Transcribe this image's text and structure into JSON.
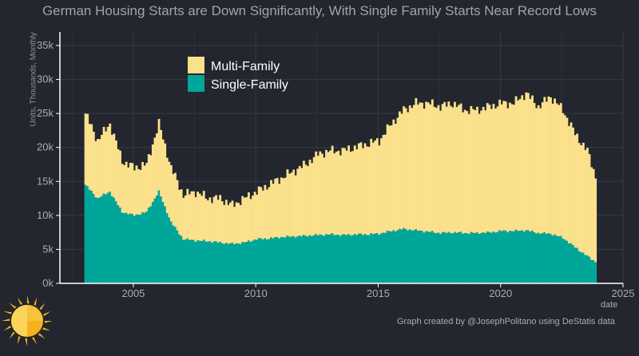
{
  "chart_data": {
    "type": "area",
    "title": "German Housing Starts are Down Significantly, With Single Family Starts Near Record Lows",
    "xlabel": "date",
    "ylabel": "Units, Thousands, Monthly",
    "caption": "Graph created by @JosephPolitano using DeStatis data",
    "stacked": true,
    "x_range": [
      2002.0,
      2025.0
    ],
    "ylim": [
      0,
      37000
    ],
    "y_ticks": [
      0,
      5000,
      10000,
      15000,
      20000,
      25000,
      30000,
      35000
    ],
    "y_tick_labels": [
      "0k",
      "5k",
      "10k",
      "15k",
      "20k",
      "25k",
      "30k",
      "35k"
    ],
    "x_ticks": [
      2005,
      2010,
      2015,
      2020,
      2025
    ],
    "x_tick_labels": [
      "2005",
      "2010",
      "2015",
      "2020",
      "2025"
    ],
    "grid": true,
    "legend_position": "top-left",
    "series": [
      {
        "name": "Multi-Family",
        "color": "#fbe18c",
        "description": "total height of stacked bars (Single-Family + Multi-Family)",
        "x": [
          2003.0,
          2003.5,
          2004.0,
          2004.5,
          2005.0,
          2005.5,
          2006.0,
          2006.5,
          2007.0,
          2007.5,
          2008.0,
          2008.5,
          2009.0,
          2009.5,
          2010.0,
          2010.5,
          2011.0,
          2011.5,
          2012.0,
          2012.5,
          2013.0,
          2013.5,
          2014.0,
          2014.5,
          2015.0,
          2015.5,
          2016.0,
          2016.5,
          2017.0,
          2017.5,
          2018.0,
          2018.5,
          2019.0,
          2019.5,
          2020.0,
          2020.5,
          2021.0,
          2021.5,
          2022.0,
          2022.5,
          2023.0,
          2023.5,
          2023.9
        ],
        "values": [
          25000,
          21000,
          23500,
          18000,
          17000,
          17500,
          23500,
          17000,
          13000,
          13500,
          12500,
          12500,
          11500,
          12500,
          13500,
          14500,
          15500,
          16500,
          17500,
          19000,
          19500,
          19500,
          20000,
          20500,
          21000,
          23500,
          25500,
          26500,
          26500,
          26000,
          26500,
          25500,
          25500,
          26000,
          26500,
          26500,
          28000,
          26000,
          27500,
          25500,
          22000,
          19500,
          15000
        ]
      },
      {
        "name": "Single-Family",
        "color": "#00a69a",
        "x": [
          2003.0,
          2003.5,
          2004.0,
          2004.5,
          2005.0,
          2005.5,
          2006.0,
          2006.5,
          2007.0,
          2007.5,
          2008.0,
          2008.5,
          2009.0,
          2009.5,
          2010.0,
          2010.5,
          2011.0,
          2011.5,
          2012.0,
          2012.5,
          2013.0,
          2013.5,
          2014.0,
          2014.5,
          2015.0,
          2015.5,
          2016.0,
          2016.5,
          2017.0,
          2017.5,
          2018.0,
          2018.5,
          2019.0,
          2019.5,
          2020.0,
          2020.5,
          2021.0,
          2021.5,
          2022.0,
          2022.5,
          2023.0,
          2023.5,
          2023.9
        ],
        "values": [
          14500,
          12500,
          13500,
          10500,
          10000,
          10500,
          13500,
          9000,
          6500,
          6300,
          6200,
          6000,
          5800,
          6000,
          6500,
          6600,
          6800,
          6900,
          7000,
          7100,
          7200,
          7100,
          7200,
          7200,
          7300,
          7700,
          8000,
          7800,
          7600,
          7400,
          7500,
          7400,
          7400,
          7500,
          7700,
          7700,
          7800,
          7400,
          7300,
          6700,
          5300,
          4000,
          3000
        ]
      }
    ]
  },
  "logo": {
    "icon": "sun-logo-icon",
    "colors": [
      "#fcd45a",
      "#f6b21b"
    ]
  }
}
